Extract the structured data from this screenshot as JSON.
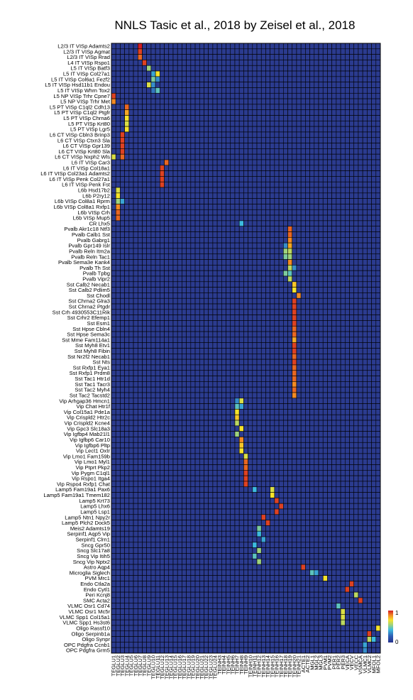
{
  "chart_data": {
    "type": "heatmap",
    "title": "NNLS Tasic et al., 2018 by Zeisel et al., 2018",
    "rows": [
      "L2/3 IT VISp Adamts2",
      "L2/3 IT VISp Agmat",
      "L2/3 IT VISp Rrad",
      "L4 IT VISp Rspo1",
      "L5 IT VISp Batf3",
      "L5 IT VISp Col27a1",
      "L5 IT VISp Col6a1 Fezf2",
      "L5 IT VISp Hsd11b1 Endou",
      "L5 IT VISp Whrn Tox2",
      "L5 NP VISp Trhr Cpne7",
      "L5 NP VISp Trhr Met",
      "L5 PT VISp C1ql2 Cdh13",
      "L5 PT VISp C1ql2 Ptgfr",
      "L5 PT VISp Chrna6",
      "L5 PT VISp Krt80",
      "L5 PT VISp Lgr5",
      "L6 CT VISp Cbln3 Brinp3",
      "L6 CT VISp Ctxn3 Sla",
      "L6 CT VISp Gpr139",
      "L6 CT VISp Krt80 Sla",
      "L6 CT VISp Nxph2 Wls",
      "L6 IT VISp Car3",
      "L6 IT VISp Col18a1",
      "L6 IT VISp Col23a1 Adamts2",
      "L6 IT VISp Penk Col27a1",
      "L6 IT VISp Penk Fst",
      "L6b Hsd17b2",
      "L6b P2ry12",
      "L6b VISp Col8a1 Rprm",
      "L6b VISp Col8a1 Rxfp1",
      "L6b VISp Crh",
      "L6b VISp Mup5",
      "CR Lhx5",
      "Pvalb Akr1c18 Ntf3",
      "Pvalb Calb1 Sst",
      "Pvalb Gabrg1",
      "Pvalb Gpr149 Islr",
      "Pvalb Reln Itm2a",
      "Pvalb Reln Tac1",
      "Pvalb Sema3e Kank4",
      "Pvalb Th Sst",
      "Pvalb Tpbg",
      "Pvalb Vipr2",
      "Sst Calb2 Necab1",
      "Sst Calb2 Pdlim5",
      "Sst Chodl",
      "Sst Chrna2 Glra3",
      "Sst Chrna2 Ptgdr",
      "Sst Crh 4930553C11Rik",
      "Sst Crhr2 Efemp1",
      "Sst Esm1",
      "Sst Hpse Cbln4",
      "Sst Hpse Sema3c",
      "Sst Mme Fam114a1",
      "Sst Myh8 Etv1",
      "Sst Myh8 Fibin",
      "Sst Nr2f2 Necab1",
      "Sst Nts",
      "Sst Rxfp1 Eya1",
      "Sst Rxfp1 Prdm8",
      "Sst Tac1 Htr1d",
      "Sst Tac1 Tacr3",
      "Sst Tac2 Myh4",
      "Sst Tac2 Tacstd2",
      "Vip Arhgap36 Hmcn1",
      "Vip Chat Htr1f",
      "Vip Col15a1 Pde1a",
      "Vip Crispld2 Htr2c",
      "Vip Crispld2 Kcne4",
      "Vip Gpc3 Slc18a3",
      "Vip Igfbp4 Mab21l1",
      "Vip Igfbp6 Car10",
      "Vip Igfbp6 Pltp",
      "Vip Lect1 Oxtr",
      "Vip Lmo1 Fam159b",
      "Vip Lmo1 Myl1",
      "Vip Ptprt Pkp2",
      "Vip Pygm C1ql1",
      "Vip Rspo1 Itga4",
      "Vip Rspo4 Rxfp1 Chat",
      "Lamp5 Fam19a1 Pax6",
      "Lamp5 Fam19a1 Tmem182",
      "Lamp5 Krt73",
      "Lamp5 Lhx6",
      "Lamp5 Lsp1",
      "Lamp5 Ntn1 Npy2r",
      "Lamp5 Plch2 Dock5",
      "Meis2 Adamts19",
      "Serpinf1 Aqp5 Vip",
      "Serpinf1 Clrn1",
      "Sncg Gpr50",
      "Sncg Slc17a8",
      "Sncg Vip Itih5",
      "Sncg Vip Nptx2",
      "Astro Aqp4",
      "Microglia Siglech",
      "PVM Mrc1",
      "Endo Ctla2a",
      "Endo Cytl1",
      "Peri Kcnj8",
      "SMC Acta2",
      "VLMC Osr1 Cd74",
      "VLMC Osr1 Mc5r",
      "VLMC Spp1 Col15a1",
      "VLMC Spp1 Hs3st6",
      "Oligo Rassf10",
      "Oligo Serpinb1a",
      "Oligo Synpr",
      "OPC Pdgfra Ccnb1",
      "OPC Pdgfra Grm5"
    ],
    "columns": [
      "TEGLU1",
      "TEGLU2",
      "TEGLU3",
      "TEGLU4",
      "TEGLU5",
      "TEGLU6",
      "TEGLU7",
      "TEGLU8",
      "TEGLU9",
      "TEGLU10",
      "TEGLU11",
      "TEGLU12",
      "TEGLU13",
      "TEGLU14",
      "TEGLU15",
      "TEGLU16",
      "TEGLU17",
      "TEGLU18",
      "TEGLU19",
      "TEGLU20",
      "TEGLU21",
      "TEGLU22",
      "TEGLU23",
      "TEGLU24",
      "TEINH3",
      "TEINH4",
      "TEINH5",
      "TEINH6",
      "TEINH7",
      "TEINH8",
      "TEINH9",
      "TEINH10",
      "TEINH11",
      "TEINH12",
      "TEINH13",
      "TEINH14",
      "TEINH15",
      "TEINH16",
      "TEINH17",
      "TEINH18",
      "TEINH19",
      "TEINH20",
      "TEINH21",
      "ACTE1",
      "ACTE2",
      "MGL1",
      "MGL2",
      "MGL3",
      "PVM1",
      "PVM2",
      "PER1",
      "PER2",
      "PER3",
      "VECA",
      "VECV",
      "VECC",
      "VSMCA",
      "VLMC1",
      "VLMC2",
      "MFOL1",
      "MFOL2"
    ],
    "hot_cells": [
      {
        "row": 0,
        "col": 6,
        "value": 1.0
      },
      {
        "row": 1,
        "col": 6,
        "value": 0.95
      },
      {
        "row": 2,
        "col": 6,
        "value": 0.9
      },
      {
        "row": 3,
        "col": 7,
        "value": 0.95
      },
      {
        "row": 4,
        "col": 8,
        "value": 0.55
      },
      {
        "row": 5,
        "col": 10,
        "value": 0.7
      },
      {
        "row": 5,
        "col": 9,
        "value": 0.35
      },
      {
        "row": 6,
        "col": 9,
        "value": 0.5
      },
      {
        "row": 6,
        "col": 10,
        "value": 0.3
      },
      {
        "row": 7,
        "col": 8,
        "value": 0.65
      },
      {
        "row": 7,
        "col": 9,
        "value": 0.3
      },
      {
        "row": 8,
        "col": 10,
        "value": 0.45
      },
      {
        "row": 8,
        "col": 9,
        "value": 0.25
      },
      {
        "row": 9,
        "col": 0,
        "value": 0.95
      },
      {
        "row": 10,
        "col": 0,
        "value": 0.85
      },
      {
        "row": 11,
        "col": 3,
        "value": 0.9
      },
      {
        "row": 12,
        "col": 3,
        "value": 0.8
      },
      {
        "row": 13,
        "col": 3,
        "value": 0.7
      },
      {
        "row": 14,
        "col": 3,
        "value": 0.65
      },
      {
        "row": 15,
        "col": 3,
        "value": 0.7
      },
      {
        "row": 16,
        "col": 2,
        "value": 0.95
      },
      {
        "row": 17,
        "col": 2,
        "value": 0.95
      },
      {
        "row": 18,
        "col": 2,
        "value": 0.95
      },
      {
        "row": 19,
        "col": 2,
        "value": 0.95
      },
      {
        "row": 20,
        "col": 2,
        "value": 0.9
      },
      {
        "row": 20,
        "col": 0,
        "value": 0.65
      },
      {
        "row": 21,
        "col": 12,
        "value": 0.9
      },
      {
        "row": 22,
        "col": 11,
        "value": 0.95
      },
      {
        "row": 23,
        "col": 11,
        "value": 0.95
      },
      {
        "row": 24,
        "col": 11,
        "value": 0.95
      },
      {
        "row": 25,
        "col": 11,
        "value": 0.95
      },
      {
        "row": 26,
        "col": 1,
        "value": 0.65
      },
      {
        "row": 27,
        "col": 1,
        "value": 0.7
      },
      {
        "row": 28,
        "col": 1,
        "value": 0.55
      },
      {
        "row": 28,
        "col": 2,
        "value": 0.35
      },
      {
        "row": 29,
        "col": 1,
        "value": 0.85
      },
      {
        "row": 30,
        "col": 1,
        "value": 0.9
      },
      {
        "row": 31,
        "col": 1,
        "value": 0.9
      },
      {
        "row": 32,
        "col": 29,
        "value": 0.4
      },
      {
        "row": 33,
        "col": 40,
        "value": 0.9
      },
      {
        "row": 34,
        "col": 40,
        "value": 0.9
      },
      {
        "row": 35,
        "col": 40,
        "value": 0.85
      },
      {
        "row": 36,
        "col": 40,
        "value": 0.8
      },
      {
        "row": 36,
        "col": 39,
        "value": 0.3
      },
      {
        "row": 37,
        "col": 39,
        "value": 0.55
      },
      {
        "row": 37,
        "col": 40,
        "value": 0.6
      },
      {
        "row": 38,
        "col": 39,
        "value": 0.5
      },
      {
        "row": 38,
        "col": 40,
        "value": 0.55
      },
      {
        "row": 39,
        "col": 40,
        "value": 0.85
      },
      {
        "row": 40,
        "col": 40,
        "value": 0.6
      },
      {
        "row": 40,
        "col": 41,
        "value": 0.3
      },
      {
        "row": 41,
        "col": 39,
        "value": 0.5
      },
      {
        "row": 41,
        "col": 40,
        "value": 0.45
      },
      {
        "row": 42,
        "col": 40,
        "value": 0.6
      },
      {
        "row": 43,
        "col": 41,
        "value": 0.75
      },
      {
        "row": 44,
        "col": 41,
        "value": 0.7
      },
      {
        "row": 45,
        "col": 42,
        "value": 0.85
      },
      {
        "row": 46,
        "col": 41,
        "value": 0.95
      },
      {
        "row": 47,
        "col": 41,
        "value": 0.95
      },
      {
        "row": 48,
        "col": 41,
        "value": 0.95
      },
      {
        "row": 49,
        "col": 41,
        "value": 0.95
      },
      {
        "row": 50,
        "col": 41,
        "value": 0.95
      },
      {
        "row": 51,
        "col": 41,
        "value": 0.9
      },
      {
        "row": 52,
        "col": 41,
        "value": 0.9
      },
      {
        "row": 53,
        "col": 41,
        "value": 0.8
      },
      {
        "row": 54,
        "col": 41,
        "value": 0.95
      },
      {
        "row": 55,
        "col": 41,
        "value": 0.95
      },
      {
        "row": 56,
        "col": 41,
        "value": 0.9
      },
      {
        "row": 57,
        "col": 41,
        "value": 0.95
      },
      {
        "row": 58,
        "col": 41,
        "value": 0.9
      },
      {
        "row": 59,
        "col": 41,
        "value": 0.9
      },
      {
        "row": 60,
        "col": 41,
        "value": 0.9
      },
      {
        "row": 61,
        "col": 41,
        "value": 0.85
      },
      {
        "row": 62,
        "col": 41,
        "value": 0.9
      },
      {
        "row": 63,
        "col": 41,
        "value": 0.85
      },
      {
        "row": 64,
        "col": 29,
        "value": 0.65
      },
      {
        "row": 64,
        "col": 28,
        "value": 0.3
      },
      {
        "row": 65,
        "col": 29,
        "value": 0.35
      },
      {
        "row": 65,
        "col": 28,
        "value": 0.45
      },
      {
        "row": 66,
        "col": 28,
        "value": 0.7
      },
      {
        "row": 67,
        "col": 28,
        "value": 0.75
      },
      {
        "row": 68,
        "col": 28,
        "value": 0.6
      },
      {
        "row": 69,
        "col": 29,
        "value": 0.7
      },
      {
        "row": 70,
        "col": 28,
        "value": 0.55
      },
      {
        "row": 71,
        "col": 29,
        "value": 0.85
      },
      {
        "row": 72,
        "col": 29,
        "value": 0.75
      },
      {
        "row": 73,
        "col": 29,
        "value": 0.7
      },
      {
        "row": 74,
        "col": 30,
        "value": 0.65
      },
      {
        "row": 75,
        "col": 30,
        "value": 0.9
      },
      {
        "row": 76,
        "col": 30,
        "value": 0.9
      },
      {
        "row": 77,
        "col": 30,
        "value": 0.95
      },
      {
        "row": 78,
        "col": 30,
        "value": 0.95
      },
      {
        "row": 79,
        "col": 30,
        "value": 0.95
      },
      {
        "row": 80,
        "col": 32,
        "value": 0.4
      },
      {
        "row": 80,
        "col": 36,
        "value": 0.65
      },
      {
        "row": 81,
        "col": 36,
        "value": 0.7
      },
      {
        "row": 82,
        "col": 37,
        "value": 0.95
      },
      {
        "row": 83,
        "col": 38,
        "value": 0.95
      },
      {
        "row": 84,
        "col": 37,
        "value": 0.95
      },
      {
        "row": 85,
        "col": 34,
        "value": 0.95
      },
      {
        "row": 86,
        "col": 35,
        "value": 0.95
      },
      {
        "row": 87,
        "col": 33,
        "value": 0.5
      },
      {
        "row": 88,
        "col": 33,
        "value": 0.4
      },
      {
        "row": 89,
        "col": 34,
        "value": 0.35
      },
      {
        "row": 90,
        "col": 32,
        "value": 0.4
      },
      {
        "row": 91,
        "col": 33,
        "value": 0.55
      },
      {
        "row": 92,
        "col": 32,
        "value": 0.45
      },
      {
        "row": 93,
        "col": 33,
        "value": 0.55
      },
      {
        "row": 94,
        "col": 43,
        "value": 0.95
      },
      {
        "row": 95,
        "col": 45,
        "value": 0.45
      },
      {
        "row": 95,
        "col": 46,
        "value": 0.35
      },
      {
        "row": 96,
        "col": 48,
        "value": 0.7
      },
      {
        "row": 97,
        "col": 54,
        "value": 0.95
      },
      {
        "row": 98,
        "col": 53,
        "value": 0.95
      },
      {
        "row": 99,
        "col": 55,
        "value": 0.6
      },
      {
        "row": 100,
        "col": 56,
        "value": 0.95
      },
      {
        "row": 101,
        "col": 51,
        "value": 0.45
      },
      {
        "row": 102,
        "col": 52,
        "value": 0.65
      },
      {
        "row": 103,
        "col": 52,
        "value": 0.65
      },
      {
        "row": 104,
        "col": 52,
        "value": 0.6
      },
      {
        "row": 105,
        "col": 60,
        "value": 0.7
      },
      {
        "row": 106,
        "col": 58,
        "value": 0.95
      },
      {
        "row": 107,
        "col": 58,
        "value": 0.6
      },
      {
        "row": 107,
        "col": 59,
        "value": 0.4
      },
      {
        "row": 108,
        "col": 57,
        "value": 0.35
      },
      {
        "row": 109,
        "col": 57,
        "value": 0.3
      }
    ],
    "colorbar": {
      "min": 0,
      "max": 1,
      "tick_labels": [
        "0",
        "1"
      ],
      "colormap": "jet"
    },
    "grid": true,
    "colors": {
      "cell_border": "#000000",
      "low": "#2b3b8f"
    }
  }
}
